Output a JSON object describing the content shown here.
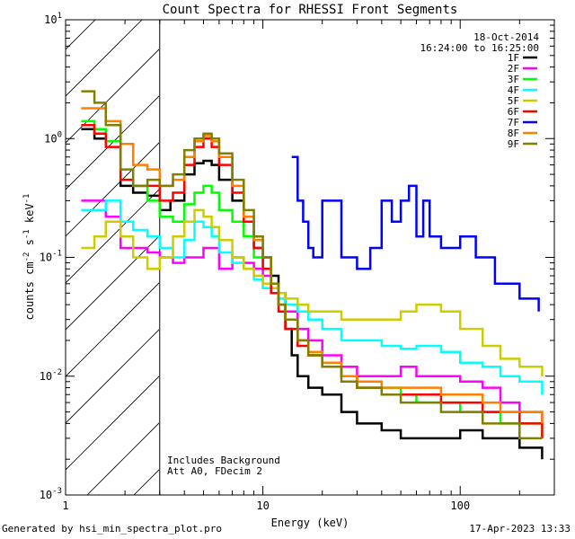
{
  "chart_data": {
    "type": "line",
    "title": "Count Spectra for RHESSI Front Segments",
    "xlabel": "Energy (keV)",
    "ylabel_parts": [
      "counts cm",
      "-2",
      " s",
      "-1",
      " keV",
      "-1"
    ],
    "x_scale": "log",
    "y_scale": "log",
    "xlim": [
      1,
      300
    ],
    "ylim": [
      0.001,
      10
    ],
    "x_ticks": [
      "1",
      "10",
      "100"
    ],
    "y_ticks": [
      {
        "base": "10",
        "exp": "-3"
      },
      {
        "base": "10",
        "exp": "-2"
      },
      {
        "base": "10",
        "exp": "-1"
      },
      {
        "base": "10",
        "exp": "0"
      },
      {
        "base": "10",
        "exp": "1"
      }
    ],
    "hatched_below_keV": 3,
    "date": "18-Oct-2014",
    "time_range": "16:24:00 to 16:25:00",
    "notes": [
      "Includes Background",
      "Att A0, FDecim 2"
    ],
    "legend_position": "top-right",
    "series": [
      {
        "name": "1F",
        "color": "#000000",
        "points": [
          [
            1.2,
            1.2
          ],
          [
            1.4,
            1.0
          ],
          [
            1.6,
            0.95
          ],
          [
            1.9,
            0.4
          ],
          [
            2.2,
            0.35
          ],
          [
            2.6,
            0.33
          ],
          [
            3.0,
            0.25
          ],
          [
            3.4,
            0.3
          ],
          [
            4.0,
            0.5
          ],
          [
            4.5,
            0.62
          ],
          [
            5.0,
            0.65
          ],
          [
            5.5,
            0.6
          ],
          [
            6.0,
            0.45
          ],
          [
            7.0,
            0.3
          ],
          [
            8.0,
            0.2
          ],
          [
            9.0,
            0.12
          ],
          [
            10,
            0.1
          ],
          [
            11,
            0.07
          ],
          [
            12,
            0.05
          ],
          [
            13,
            0.025
          ],
          [
            14,
            0.015
          ],
          [
            15,
            0.01
          ],
          [
            17,
            0.008
          ],
          [
            20,
            0.007
          ],
          [
            25,
            0.005
          ],
          [
            30,
            0.004
          ],
          [
            40,
            0.0035
          ],
          [
            50,
            0.003
          ],
          [
            60,
            0.003
          ],
          [
            80,
            0.003
          ],
          [
            100,
            0.0035
          ],
          [
            130,
            0.003
          ],
          [
            160,
            0.003
          ],
          [
            200,
            0.0025
          ],
          [
            260,
            0.002
          ]
        ]
      },
      {
        "name": "2F",
        "color": "#ff00ff",
        "points": [
          [
            1.2,
            0.3
          ],
          [
            1.4,
            0.3
          ],
          [
            1.6,
            0.22
          ],
          [
            1.9,
            0.12
          ],
          [
            2.2,
            0.12
          ],
          [
            2.6,
            0.11
          ],
          [
            3.0,
            0.1
          ],
          [
            3.5,
            0.09
          ],
          [
            4.0,
            0.1
          ],
          [
            5.0,
            0.12
          ],
          [
            6.0,
            0.08
          ],
          [
            7.0,
            0.1
          ],
          [
            8.0,
            0.09
          ],
          [
            9.0,
            0.08
          ],
          [
            10,
            0.07
          ],
          [
            11,
            0.05
          ],
          [
            12,
            0.04
          ],
          [
            13,
            0.035
          ],
          [
            15,
            0.025
          ],
          [
            17,
            0.02
          ],
          [
            20,
            0.015
          ],
          [
            25,
            0.012
          ],
          [
            30,
            0.01
          ],
          [
            40,
            0.01
          ],
          [
            50,
            0.012
          ],
          [
            60,
            0.01
          ],
          [
            80,
            0.01
          ],
          [
            100,
            0.009
          ],
          [
            130,
            0.008
          ],
          [
            160,
            0.006
          ],
          [
            200,
            0.005
          ],
          [
            260,
            0.004
          ]
        ]
      },
      {
        "name": "3F",
        "color": "#00ff00",
        "points": [
          [
            1.2,
            1.4
          ],
          [
            1.4,
            1.2
          ],
          [
            1.6,
            0.95
          ],
          [
            1.9,
            0.45
          ],
          [
            2.2,
            0.4
          ],
          [
            2.6,
            0.3
          ],
          [
            3.0,
            0.22
          ],
          [
            3.5,
            0.2
          ],
          [
            4.0,
            0.28
          ],
          [
            4.5,
            0.35
          ],
          [
            5.0,
            0.4
          ],
          [
            5.5,
            0.35
          ],
          [
            6.0,
            0.25
          ],
          [
            7.0,
            0.2
          ],
          [
            8.0,
            0.15
          ],
          [
            9.0,
            0.1
          ],
          [
            10,
            0.08
          ],
          [
            11,
            0.06
          ],
          [
            12,
            0.04
          ],
          [
            13,
            0.03
          ],
          [
            15,
            0.02
          ],
          [
            17,
            0.015
          ],
          [
            20,
            0.012
          ],
          [
            25,
            0.01
          ],
          [
            30,
            0.008
          ],
          [
            40,
            0.008
          ],
          [
            50,
            0.007
          ],
          [
            60,
            0.006
          ],
          [
            80,
            0.006
          ],
          [
            100,
            0.005
          ],
          [
            130,
            0.005
          ],
          [
            160,
            0.004
          ],
          [
            200,
            0.004
          ],
          [
            260,
            0.003
          ]
        ]
      },
      {
        "name": "4F",
        "color": "#00ffff",
        "points": [
          [
            1.2,
            0.25
          ],
          [
            1.4,
            0.25
          ],
          [
            1.6,
            0.3
          ],
          [
            1.9,
            0.2
          ],
          [
            2.2,
            0.17
          ],
          [
            2.6,
            0.15
          ],
          [
            3.0,
            0.12
          ],
          [
            3.5,
            0.1
          ],
          [
            4.0,
            0.14
          ],
          [
            4.5,
            0.2
          ],
          [
            5.0,
            0.18
          ],
          [
            5.5,
            0.15
          ],
          [
            6.0,
            0.11
          ],
          [
            7.0,
            0.09
          ],
          [
            8.0,
            0.08
          ],
          [
            9.0,
            0.065
          ],
          [
            10,
            0.055
          ],
          [
            11,
            0.05
          ],
          [
            12,
            0.045
          ],
          [
            13,
            0.04
          ],
          [
            15,
            0.035
          ],
          [
            17,
            0.03
          ],
          [
            20,
            0.025
          ],
          [
            25,
            0.02
          ],
          [
            30,
            0.02
          ],
          [
            40,
            0.018
          ],
          [
            50,
            0.017
          ],
          [
            60,
            0.018
          ],
          [
            80,
            0.016
          ],
          [
            100,
            0.013
          ],
          [
            130,
            0.012
          ],
          [
            160,
            0.01
          ],
          [
            200,
            0.009
          ],
          [
            260,
            0.007
          ]
        ]
      },
      {
        "name": "5F",
        "color": "#cccc00",
        "points": [
          [
            1.2,
            0.12
          ],
          [
            1.4,
            0.15
          ],
          [
            1.6,
            0.2
          ],
          [
            1.9,
            0.15
          ],
          [
            2.2,
            0.1
          ],
          [
            2.6,
            0.08
          ],
          [
            3.0,
            0.1
          ],
          [
            3.5,
            0.15
          ],
          [
            4.0,
            0.2
          ],
          [
            4.5,
            0.25
          ],
          [
            5.0,
            0.22
          ],
          [
            5.5,
            0.18
          ],
          [
            6.0,
            0.14
          ],
          [
            7.0,
            0.1
          ],
          [
            8.0,
            0.08
          ],
          [
            9.0,
            0.07
          ],
          [
            10,
            0.06
          ],
          [
            11,
            0.055
          ],
          [
            12,
            0.05
          ],
          [
            13,
            0.045
          ],
          [
            15,
            0.04
          ],
          [
            17,
            0.035
          ],
          [
            20,
            0.035
          ],
          [
            25,
            0.03
          ],
          [
            30,
            0.03
          ],
          [
            40,
            0.03
          ],
          [
            50,
            0.035
          ],
          [
            60,
            0.04
          ],
          [
            80,
            0.035
          ],
          [
            100,
            0.025
          ],
          [
            130,
            0.018
          ],
          [
            160,
            0.014
          ],
          [
            200,
            0.012
          ],
          [
            260,
            0.01
          ]
        ]
      },
      {
        "name": "6F",
        "color": "#ff0000",
        "points": [
          [
            1.2,
            1.3
          ],
          [
            1.4,
            1.1
          ],
          [
            1.6,
            0.85
          ],
          [
            1.9,
            0.45
          ],
          [
            2.2,
            0.4
          ],
          [
            2.6,
            0.4
          ],
          [
            3.0,
            0.3
          ],
          [
            3.5,
            0.35
          ],
          [
            4.0,
            0.6
          ],
          [
            4.5,
            0.85
          ],
          [
            5.0,
            1.0
          ],
          [
            5.5,
            0.85
          ],
          [
            6.0,
            0.6
          ],
          [
            7.0,
            0.35
          ],
          [
            8.0,
            0.2
          ],
          [
            9.0,
            0.12
          ],
          [
            10,
            0.08
          ],
          [
            11,
            0.05
          ],
          [
            12,
            0.035
          ],
          [
            13,
            0.025
          ],
          [
            15,
            0.018
          ],
          [
            17,
            0.015
          ],
          [
            20,
            0.012
          ],
          [
            25,
            0.01
          ],
          [
            30,
            0.008
          ],
          [
            40,
            0.007
          ],
          [
            50,
            0.007
          ],
          [
            60,
            0.007
          ],
          [
            80,
            0.006
          ],
          [
            100,
            0.006
          ],
          [
            130,
            0.005
          ],
          [
            160,
            0.005
          ],
          [
            200,
            0.004
          ],
          [
            260,
            0.003
          ]
        ]
      },
      {
        "name": "7F",
        "color": "#0000ff",
        "points": [
          [
            14,
            0.7
          ],
          [
            15,
            0.3
          ],
          [
            16,
            0.2
          ],
          [
            17,
            0.12
          ],
          [
            18,
            0.1
          ],
          [
            20,
            0.3
          ],
          [
            25,
            0.1
          ],
          [
            30,
            0.08
          ],
          [
            35,
            0.12
          ],
          [
            40,
            0.3
          ],
          [
            45,
            0.2
          ],
          [
            50,
            0.3
          ],
          [
            55,
            0.4
          ],
          [
            60,
            0.15
          ],
          [
            65,
            0.3
          ],
          [
            70,
            0.15
          ],
          [
            80,
            0.12
          ],
          [
            100,
            0.15
          ],
          [
            120,
            0.1
          ],
          [
            150,
            0.06
          ],
          [
            200,
            0.045
          ],
          [
            250,
            0.035
          ]
        ]
      },
      {
        "name": "8F",
        "color": "#ff8000",
        "points": [
          [
            1.2,
            1.8
          ],
          [
            1.4,
            1.8
          ],
          [
            1.6,
            1.4
          ],
          [
            1.9,
            0.9
          ],
          [
            2.2,
            0.6
          ],
          [
            2.6,
            0.55
          ],
          [
            3.0,
            0.4
          ],
          [
            3.5,
            0.45
          ],
          [
            4.0,
            0.7
          ],
          [
            4.5,
            0.95
          ],
          [
            5.0,
            1.05
          ],
          [
            5.5,
            0.95
          ],
          [
            6.0,
            0.7
          ],
          [
            7.0,
            0.4
          ],
          [
            8.0,
            0.22
          ],
          [
            9.0,
            0.14
          ],
          [
            10,
            0.1
          ],
          [
            11,
            0.06
          ],
          [
            12,
            0.04
          ],
          [
            13,
            0.03
          ],
          [
            15,
            0.02
          ],
          [
            17,
            0.016
          ],
          [
            20,
            0.013
          ],
          [
            25,
            0.01
          ],
          [
            30,
            0.009
          ],
          [
            40,
            0.008
          ],
          [
            50,
            0.008
          ],
          [
            60,
            0.008
          ],
          [
            80,
            0.007
          ],
          [
            100,
            0.007
          ],
          [
            130,
            0.006
          ],
          [
            160,
            0.005
          ],
          [
            200,
            0.005
          ],
          [
            260,
            0.004
          ]
        ]
      },
      {
        "name": "9F",
        "color": "#808000",
        "points": [
          [
            1.2,
            2.5
          ],
          [
            1.4,
            2.0
          ],
          [
            1.6,
            1.3
          ],
          [
            1.9,
            0.55
          ],
          [
            2.2,
            0.4
          ],
          [
            2.6,
            0.45
          ],
          [
            3.0,
            0.4
          ],
          [
            3.5,
            0.5
          ],
          [
            4.0,
            0.8
          ],
          [
            4.5,
            1.0
          ],
          [
            5.0,
            1.1
          ],
          [
            5.5,
            1.0
          ],
          [
            6.0,
            0.75
          ],
          [
            7.0,
            0.45
          ],
          [
            8.0,
            0.25
          ],
          [
            9.0,
            0.15
          ],
          [
            10,
            0.1
          ],
          [
            11,
            0.06
          ],
          [
            12,
            0.04
          ],
          [
            13,
            0.03
          ],
          [
            15,
            0.02
          ],
          [
            17,
            0.015
          ],
          [
            20,
            0.012
          ],
          [
            25,
            0.009
          ],
          [
            30,
            0.008
          ],
          [
            40,
            0.007
          ],
          [
            50,
            0.006
          ],
          [
            60,
            0.006
          ],
          [
            80,
            0.005
          ],
          [
            100,
            0.005
          ],
          [
            130,
            0.004
          ],
          [
            160,
            0.004
          ],
          [
            200,
            0.003
          ],
          [
            260,
            0.003
          ]
        ]
      }
    ]
  },
  "footer": {
    "generated_by": "Generated by hsi_min_spectra_plot.pro",
    "timestamp": "17-Apr-2023 13:33"
  }
}
